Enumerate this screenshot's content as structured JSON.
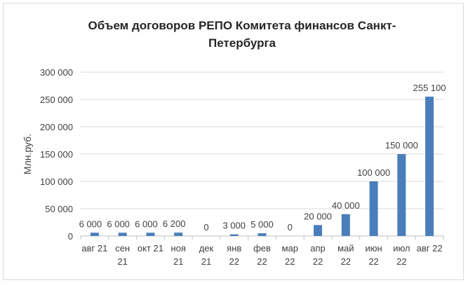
{
  "chart_data": {
    "type": "bar",
    "title": "Объем договоров  РЕПО Комитета финансов Санкт-Петербурга",
    "title_lines": [
      "Объем договоров  РЕПО Комитета финансов Санкт-",
      "Петербурга"
    ],
    "xlabel": "",
    "ylabel": "Млн.руб.",
    "ylim": [
      0,
      300000
    ],
    "yticks": [
      0,
      50000,
      100000,
      150000,
      200000,
      250000,
      300000
    ],
    "ytick_labels": [
      "0",
      "50 000",
      "100 000",
      "150 000",
      "200 000",
      "250 000",
      "300 000"
    ],
    "categories": [
      "авг 21",
      "сен 21",
      "окт 21",
      "ноя 21",
      "дек 21",
      "янв 22",
      "фев 22",
      "мар 22",
      "апр 22",
      "май 22",
      "июн 22",
      "июл 22",
      "авг 22"
    ],
    "category_lines": [
      [
        "авг 21"
      ],
      [
        "сен",
        "21"
      ],
      [
        "окт 21"
      ],
      [
        "ноя",
        "21"
      ],
      [
        "дек",
        "21"
      ],
      [
        "янв",
        "22"
      ],
      [
        "фев",
        "22"
      ],
      [
        "мар",
        "22"
      ],
      [
        "апр",
        "22"
      ],
      [
        "май",
        "22"
      ],
      [
        "июн",
        "22"
      ],
      [
        "июл",
        "22"
      ],
      [
        "авг 22"
      ]
    ],
    "values": [
      6000,
      6000,
      6000,
      6200,
      0,
      3000,
      5000,
      0,
      20000,
      40000,
      100000,
      150000,
      255100
    ],
    "data_labels": [
      "6 000",
      "6 000",
      "6 000",
      "6 200",
      "0",
      "3 000",
      "5 000",
      "0",
      "20 000",
      "40 000",
      "100 000",
      "150 000",
      "255 100"
    ],
    "grid": true,
    "bar_color": "#4a7ebb"
  }
}
